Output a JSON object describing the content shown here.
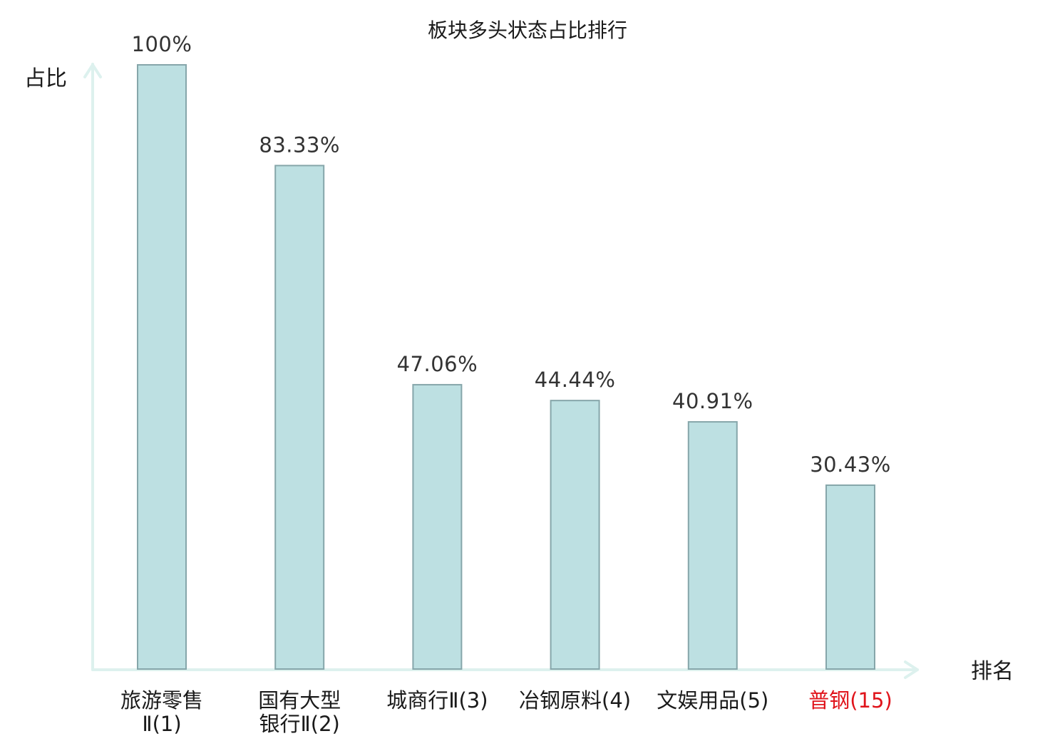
{
  "chart_data": {
    "type": "bar",
    "title": "板块多头状态占比排行",
    "ylabel": "占比",
    "xlabel": "排名",
    "ylim": [
      0,
      100
    ],
    "grid": false,
    "legend": "none",
    "categories": [
      [
        "旅游零售",
        "Ⅱ(1)"
      ],
      [
        "国有大型",
        "银行Ⅱ(2)"
      ],
      [
        "城商行Ⅱ(3)"
      ],
      [
        "冶钢原料(4)"
      ],
      [
        "文娱用品(5)"
      ],
      [
        "普钢(15)"
      ]
    ],
    "values": [
      100,
      83.33,
      47.06,
      44.44,
      40.91,
      30.43
    ],
    "value_labels": [
      "100%",
      "83.33%",
      "47.06%",
      "44.44%",
      "40.91%",
      "30.43%"
    ],
    "highlight_index": 5,
    "colors": {
      "bar_fill": "#bde0e2",
      "bar_stroke": "#86a6aa",
      "axis": "#ddf1ee",
      "text": "#1a1a1a",
      "value_text": "#333333",
      "highlight_text": "#e0141b"
    }
  }
}
